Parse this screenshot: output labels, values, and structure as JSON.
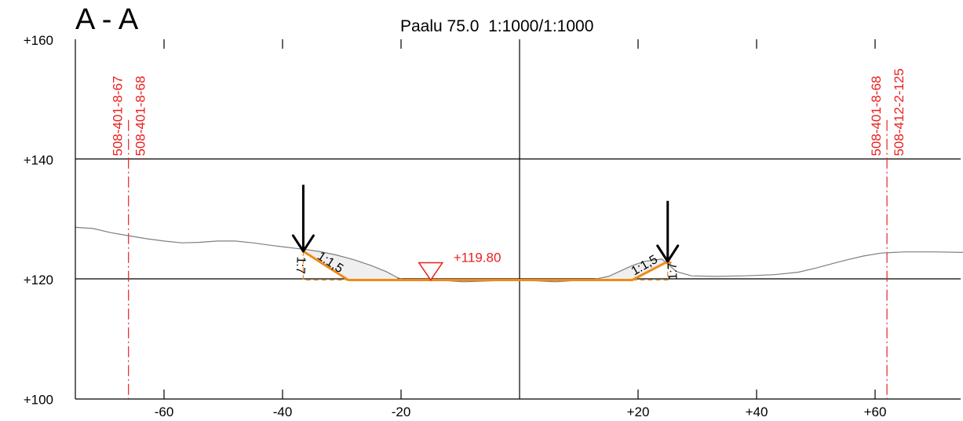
{
  "section_title": "A - A",
  "header": "Paalu 75.0  1:1000/1:1000",
  "colors": {
    "terrain": "#7f7f7f",
    "design": "#f18a17",
    "property_lines": "#e8201e",
    "water_level": "#e8201e",
    "fill": "#efefef"
  },
  "chart_data": {
    "type": "line",
    "x_ticks": [
      -60,
      -40,
      -20,
      20,
      40,
      60
    ],
    "x_tick_labels": [
      "-60",
      "-40",
      "-20",
      "+20",
      "+40",
      "+60"
    ],
    "y_ticks": [
      100,
      120,
      140,
      160
    ],
    "y_tick_labels": [
      "+100",
      "+120",
      "+140",
      "+160"
    ],
    "xlim": [
      -75,
      75
    ],
    "ylim": [
      100,
      160
    ],
    "grid": true,
    "terrain_profile": [
      [
        -75,
        128.6
      ],
      [
        -72,
        128.4
      ],
      [
        -69,
        127.7
      ],
      [
        -66,
        127.2
      ],
      [
        -63,
        126.7
      ],
      [
        -60,
        126.3
      ],
      [
        -57,
        126.0
      ],
      [
        -54,
        126.1
      ],
      [
        -51,
        126.3
      ],
      [
        -48,
        126.3
      ],
      [
        -45,
        126.0
      ],
      [
        -42,
        125.6
      ],
      [
        -39.5,
        125.3
      ],
      [
        -37,
        125.0
      ],
      [
        -34,
        124.6
      ],
      [
        -31,
        124.0
      ],
      [
        -28,
        123.2
      ],
      [
        -25,
        122.2
      ],
      [
        -22.5,
        121.2
      ],
      [
        -20.6,
        120.2
      ],
      [
        -19.5,
        119.8
      ],
      [
        -14,
        119.8
      ],
      [
        -9.5,
        119.5
      ],
      [
        0,
        119.8
      ],
      [
        6,
        119.5
      ],
      [
        12.5,
        119.9
      ],
      [
        15,
        120.4
      ],
      [
        17,
        121.3
      ],
      [
        19,
        122.2
      ],
      [
        21,
        122.9
      ],
      [
        24,
        123.3
      ],
      [
        26.5,
        121.2
      ],
      [
        29,
        120.5
      ],
      [
        33,
        120.4
      ],
      [
        38,
        120.5
      ],
      [
        43,
        120.7
      ],
      [
        47,
        121.1
      ],
      [
        50,
        121.8
      ],
      [
        53,
        122.6
      ],
      [
        55,
        123.1
      ],
      [
        58,
        123.8
      ],
      [
        61,
        124.3
      ],
      [
        65,
        124.5
      ],
      [
        70,
        124.5
      ],
      [
        75,
        124.4
      ]
    ],
    "design_profile": [
      [
        -36.5,
        124.6
      ],
      [
        -28.9,
        119.8
      ],
      [
        19.0,
        119.8
      ],
      [
        25.0,
        122.9
      ]
    ],
    "right_tie": [
      [
        25.0,
        122.9
      ],
      [
        25.6,
        122.6
      ]
    ],
    "fill_polygons": [
      [
        [
          -36.5,
          124.6
        ],
        [
          -28.9,
          119.8
        ],
        [
          -20.6,
          119.8
        ],
        [
          -20.6,
          120.2
        ],
        [
          -22.5,
          121.2
        ],
        [
          -25,
          122.2
        ],
        [
          -28,
          123.2
        ],
        [
          -31,
          124.0
        ],
        [
          -34,
          124.6
        ]
      ],
      [
        [
          25.0,
          122.9
        ],
        [
          19.0,
          119.8
        ],
        [
          12.5,
          119.8
        ],
        [
          15,
          120.4
        ],
        [
          17,
          121.3
        ],
        [
          19,
          122.2
        ],
        [
          21,
          122.9
        ],
        [
          24,
          123.3
        ]
      ]
    ],
    "dashed_outline_segments": [
      [
        [
          -36.5,
          124.6
        ],
        [
          -36.5,
          119.8
        ],
        [
          -28.9,
          119.8
        ]
      ],
      [
        [
          19.0,
          119.8
        ],
        [
          25.0,
          119.8
        ],
        [
          25.0,
          122.9
        ]
      ]
    ],
    "arrows": [
      {
        "x": -36.5,
        "y_tip": 124.6,
        "y_tail": 135.7
      },
      {
        "x": 25.0,
        "y_tip": 122.9,
        "y_tail": 133.0
      }
    ],
    "water_level": {
      "x": -15.0,
      "y": 119.8,
      "label": "+119.80"
    },
    "slope_labels": [
      {
        "text": "1:1,5",
        "x": -32.3,
        "y": 122.2,
        "angle": 33
      },
      {
        "text": "1:1,5",
        "x": 21.4,
        "y": 121.7,
        "angle": -30
      },
      {
        "text": "1:7",
        "x": -37.6,
        "y": 122.3,
        "angle": 93
      },
      {
        "text": "1:7",
        "x": 26.5,
        "y": 121.3,
        "angle": -93
      }
    ],
    "property_lines": [
      {
        "x": -66.0,
        "labels": [
          "508-401-8-67",
          "508-401-8-68"
        ]
      },
      {
        "x": 62.0,
        "labels": [
          "508-401-8-68",
          "508-412-2-125"
        ]
      }
    ]
  }
}
